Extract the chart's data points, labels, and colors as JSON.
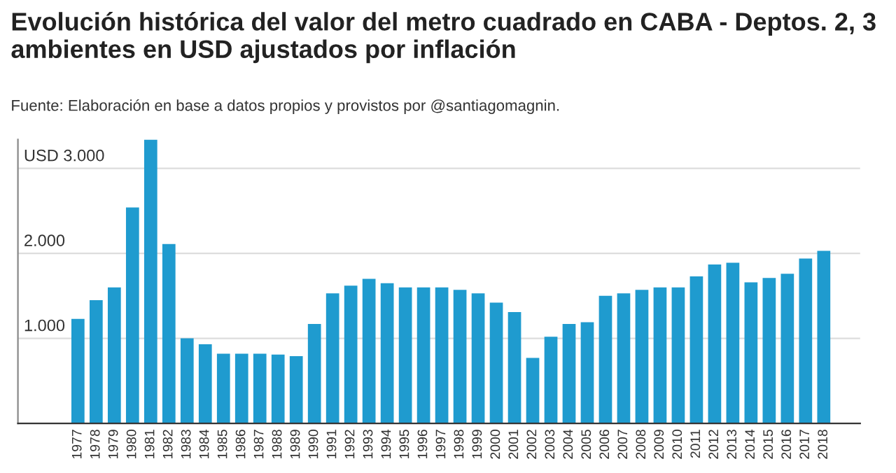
{
  "chart_data": {
    "type": "bar",
    "title": "Evolución histórica del valor del metro cuadrado en CABA - Deptos. 2, 3 ambientes en USD ajustados por inflación",
    "subtitle": "Fuente: Elaboración en base a datos propios y provistos por @santiagomagnin.",
    "categories": [
      "1977",
      "1978",
      "1979",
      "1980",
      "1981",
      "1982",
      "1983",
      "1984",
      "1985",
      "1986",
      "1987",
      "1988",
      "1989",
      "1990",
      "1991",
      "1992",
      "1993",
      "1994",
      "1995",
      "1996",
      "1997",
      "1998",
      "1999",
      "2000",
      "2001",
      "2002",
      "2003",
      "2004",
      "2005",
      "2006",
      "2007",
      "2008",
      "2009",
      "2010",
      "2011",
      "2012",
      "2013",
      "2014",
      "2015",
      "2016",
      "2017",
      "2018"
    ],
    "values": [
      1230,
      1450,
      1600,
      2540,
      3340,
      2110,
      1000,
      930,
      820,
      820,
      820,
      810,
      790,
      1170,
      1530,
      1620,
      1700,
      1650,
      1600,
      1600,
      1600,
      1570,
      1530,
      1420,
      1310,
      770,
      1020,
      1170,
      1190,
      1500,
      1530,
      1570,
      1600,
      1600,
      1730,
      1870,
      1890,
      1660,
      1710,
      1760,
      1940,
      2030
    ],
    "color": "#1f9bcf",
    "ylim": [
      0,
      3340
    ],
    "yticks": [
      {
        "value": 1000,
        "label": "1.000"
      },
      {
        "value": 2000,
        "label": "2.000"
      },
      {
        "value": 3000,
        "label": "USD 3.000"
      }
    ],
    "grid": "y",
    "legend": false
  }
}
